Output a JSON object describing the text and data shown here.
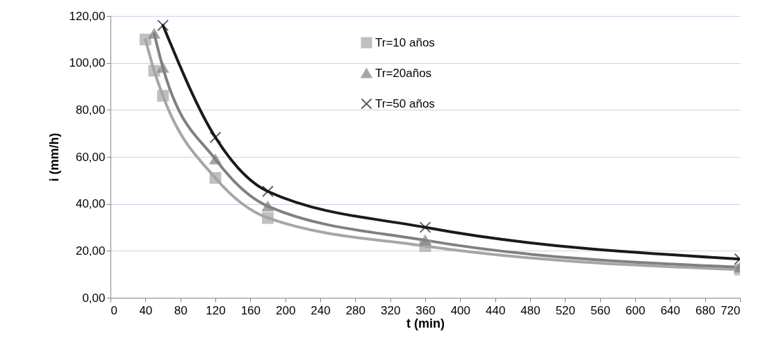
{
  "chart_data": {
    "type": "line",
    "xlabel": "t (min)",
    "ylabel": "i (mm/h)",
    "xlim": [
      0,
      720
    ],
    "ylim": [
      0,
      120
    ],
    "xticks": [
      0,
      40,
      80,
      120,
      160,
      200,
      240,
      280,
      320,
      360,
      400,
      440,
      480,
      520,
      560,
      600,
      640,
      680,
      720
    ],
    "yticks": [
      {
        "value": 0,
        "label": "0,00"
      },
      {
        "value": 20,
        "label": "20,00"
      },
      {
        "value": 40,
        "label": "40,00"
      },
      {
        "value": 60,
        "label": "60,00"
      },
      {
        "value": 80,
        "label": "80,00"
      },
      {
        "value": 100,
        "label": "100,00"
      },
      {
        "value": 120,
        "label": "120,00"
      }
    ],
    "grid": "y",
    "legend": "top",
    "line_style": "solid",
    "series": [
      {
        "name": "Tr=10 años",
        "color": "#a6a6a6",
        "marker": "square",
        "x": [
          40,
          50,
          60,
          120,
          180,
          360,
          720
        ],
        "values": [
          110,
          96.7,
          86,
          51,
          34,
          22,
          12
        ]
      },
      {
        "name": "Tr=20años",
        "color": "#808080",
        "marker": "triangle",
        "x": [
          50,
          60,
          120,
          180,
          360,
          720
        ],
        "values": [
          112.5,
          98,
          59,
          39,
          24.5,
          13
        ]
      },
      {
        "name": "Tr=50 años",
        "color": "#1a1a1a",
        "marker": "cross",
        "x": [
          60,
          120,
          180,
          360,
          720
        ],
        "values": [
          116,
          68.3,
          45.3,
          30,
          16.5
        ]
      }
    ]
  }
}
